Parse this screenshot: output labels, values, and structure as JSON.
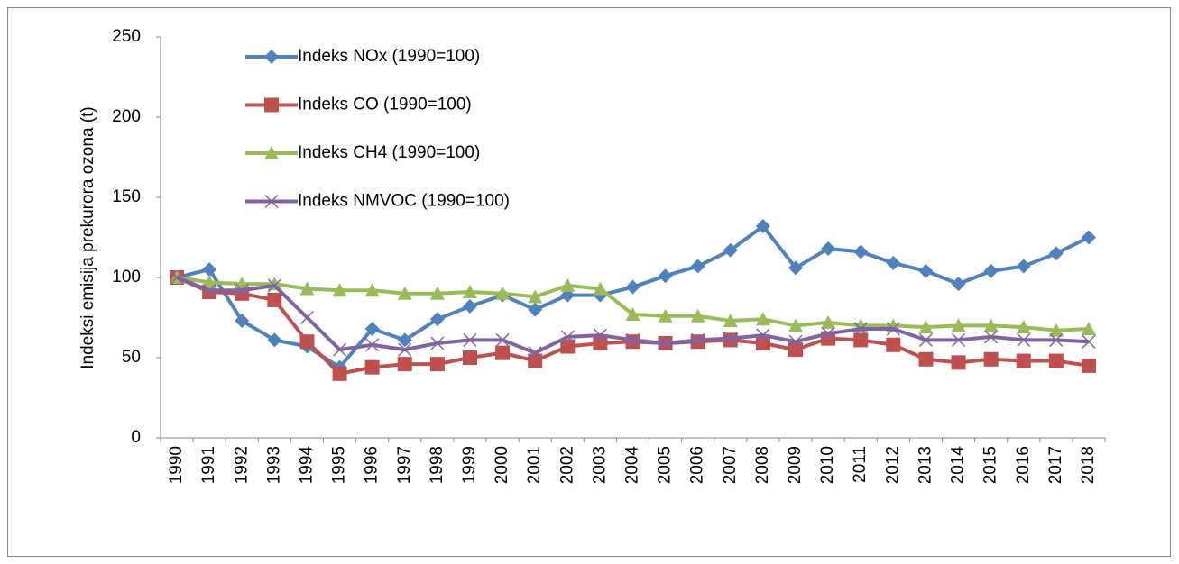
{
  "chart_data": {
    "type": "line",
    "y_label": "Indeksi emisija prekurora ozona (t)",
    "categories": [
      "1990",
      "1991",
      "1992",
      "1993",
      "1994",
      "1995",
      "1996",
      "1997",
      "1998",
      "1999",
      "2000",
      "2001",
      "2002",
      "2003",
      "2004",
      "2005",
      "2006",
      "2007",
      "2008",
      "2009",
      "2010",
      "2011",
      "2012",
      "2013",
      "2014",
      "2015",
      "2016",
      "2017",
      "2018"
    ],
    "series": [
      {
        "name": "Indeks NOx (1990=100)",
        "color": "#4f81bd",
        "marker": "diamond",
        "values": [
          100,
          105,
          73,
          61,
          57,
          44,
          68,
          61,
          74,
          82,
          89,
          80,
          89,
          89,
          94,
          101,
          107,
          117,
          132,
          106,
          118,
          116,
          109,
          104,
          96,
          104,
          107,
          115,
          125
        ]
      },
      {
        "name": "Indeks CO (1990=100)",
        "color": "#c0504d",
        "marker": "square",
        "values": [
          100,
          91,
          90,
          86,
          60,
          40,
          44,
          46,
          46,
          50,
          53,
          48,
          57,
          59,
          60,
          59,
          60,
          61,
          59,
          55,
          62,
          61,
          58,
          49,
          47,
          49,
          48,
          48,
          45
        ]
      },
      {
        "name": "Indeks CH4 (1990=100)",
        "color": "#9bbb59",
        "marker": "triangle",
        "values": [
          100,
          97,
          96,
          96,
          93,
          92,
          92,
          90,
          90,
          91,
          90,
          88,
          95,
          93,
          77,
          76,
          76,
          73,
          74,
          70,
          72,
          70,
          70,
          69,
          70,
          70,
          69,
          67,
          68
        ]
      },
      {
        "name": "Indeks NMVOC (1990=100)",
        "color": "#8064a2",
        "marker": "x",
        "values": [
          100,
          92,
          92,
          95,
          75,
          55,
          58,
          55,
          59,
          61,
          61,
          53,
          63,
          64,
          61,
          59,
          61,
          62,
          64,
          60,
          65,
          68,
          68,
          61,
          61,
          63,
          61,
          61,
          60
        ]
      }
    ],
    "ylim": [
      0,
      250
    ],
    "yticks": [
      0,
      50,
      100,
      150,
      200,
      250
    ],
    "legend": "upper left"
  }
}
